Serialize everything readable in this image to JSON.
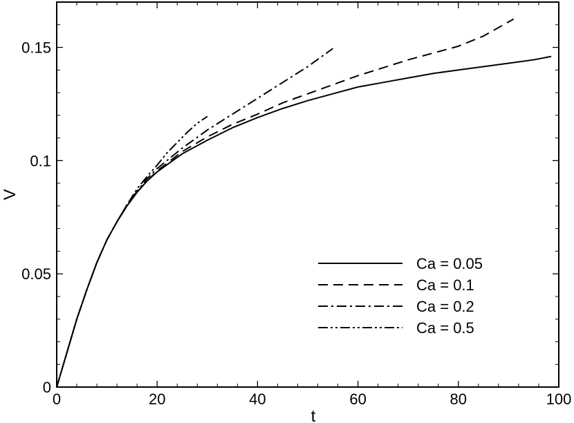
{
  "chart_data": {
    "type": "line",
    "title": "",
    "xlabel": "t",
    "ylabel": "V",
    "xlim": [
      0,
      100
    ],
    "ylim": [
      0,
      0.17
    ],
    "grid": false,
    "legend_position": "bottom-right",
    "x_ticks": [
      0,
      20,
      40,
      60,
      80,
      100
    ],
    "x_tick_labels": [
      "0",
      "20",
      "40",
      "60",
      "80",
      "100"
    ],
    "y_ticks": [
      0,
      0.05,
      0.1,
      0.15
    ],
    "y_tick_labels": [
      "0",
      "0.05",
      "0.1",
      "0.15"
    ],
    "series": [
      {
        "name": "Ca = 0.05",
        "line_style": "solid",
        "color": "#000000",
        "x": [
          0,
          2,
          4,
          6,
          8,
          10,
          12,
          14,
          16,
          18,
          20,
          25,
          30,
          35,
          40,
          45,
          50,
          55,
          60,
          65,
          70,
          75,
          80,
          85,
          90,
          95,
          98.5
        ],
        "y": [
          0,
          0.015,
          0.03,
          0.043,
          0.055,
          0.065,
          0.073,
          0.08,
          0.086,
          0.091,
          0.095,
          0.103,
          0.109,
          0.1145,
          0.119,
          0.123,
          0.1265,
          0.1295,
          0.1325,
          0.1345,
          0.1365,
          0.1385,
          0.14,
          0.1415,
          0.143,
          0.1445,
          0.146
        ]
      },
      {
        "name": "Ca = 0.1",
        "line_style": "dashed",
        "color": "#000000",
        "x": [
          0,
          2,
          4,
          6,
          8,
          10,
          12,
          14,
          16,
          18,
          20,
          25,
          30,
          35,
          40,
          45,
          50,
          55,
          60,
          65,
          70,
          75,
          80,
          85,
          91
        ],
        "y": [
          0,
          0.015,
          0.03,
          0.043,
          0.055,
          0.065,
          0.073,
          0.08,
          0.086,
          0.091,
          0.0955,
          0.104,
          0.1105,
          0.116,
          0.1205,
          0.1255,
          0.1295,
          0.1335,
          0.1375,
          0.141,
          0.1445,
          0.1475,
          0.1505,
          0.155,
          0.1625
        ]
      },
      {
        "name": "Ca = 0.2",
        "line_style": "dashdot",
        "color": "#000000",
        "x": [
          0,
          2,
          4,
          6,
          8,
          10,
          12,
          14,
          16,
          18,
          20,
          25,
          30,
          35,
          40,
          45,
          50,
          55
        ],
        "y": [
          0,
          0.015,
          0.03,
          0.043,
          0.055,
          0.065,
          0.073,
          0.0805,
          0.0865,
          0.092,
          0.0965,
          0.1055,
          0.1135,
          0.1205,
          0.1275,
          0.1345,
          0.1415,
          0.1495
        ]
      },
      {
        "name": "Ca = 0.5",
        "line_style": "dashdotdot",
        "color": "#000000",
        "x": [
          0,
          2,
          4,
          6,
          8,
          10,
          12,
          14,
          16,
          18,
          20,
          22,
          24,
          26,
          28,
          30
        ],
        "y": [
          0,
          0.015,
          0.03,
          0.043,
          0.055,
          0.065,
          0.073,
          0.0805,
          0.0875,
          0.093,
          0.098,
          0.1035,
          0.108,
          0.1125,
          0.1165,
          0.1195
        ]
      }
    ]
  }
}
